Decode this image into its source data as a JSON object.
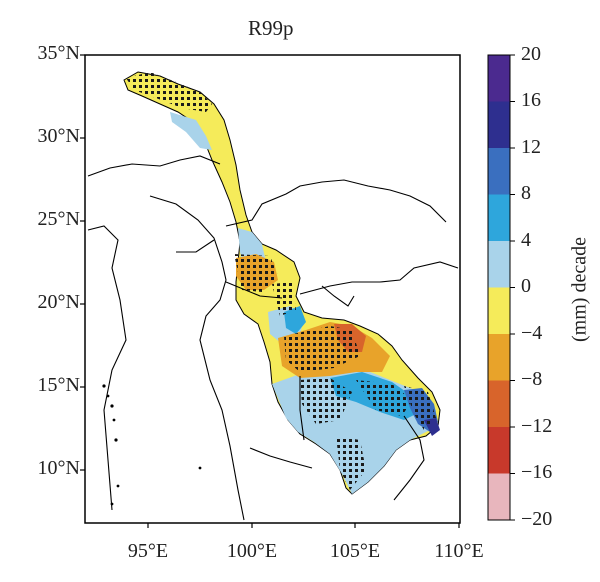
{
  "title": "R99p",
  "lat_ticks": [
    "35°N",
    "30°N",
    "25°N",
    "20°N",
    "15°N",
    "10°N"
  ],
  "lon_ticks": [
    "95°E",
    "100°E",
    "105°E",
    "110°E"
  ],
  "colorbar": {
    "unit_label": "(mm) decade",
    "ticks": [
      "20",
      "16",
      "12",
      "8",
      "4",
      "0",
      "−4",
      "−8",
      "−12",
      "−16",
      "−20"
    ],
    "colors": [
      "#4b2a8f",
      "#2e2f8f",
      "#3a6fbf",
      "#2ea6dc",
      "#a9d3ea",
      "#f5eb5a",
      "#e8a32a",
      "#d8642b",
      "#c8392b",
      "#e8b6bd"
    ]
  }
}
